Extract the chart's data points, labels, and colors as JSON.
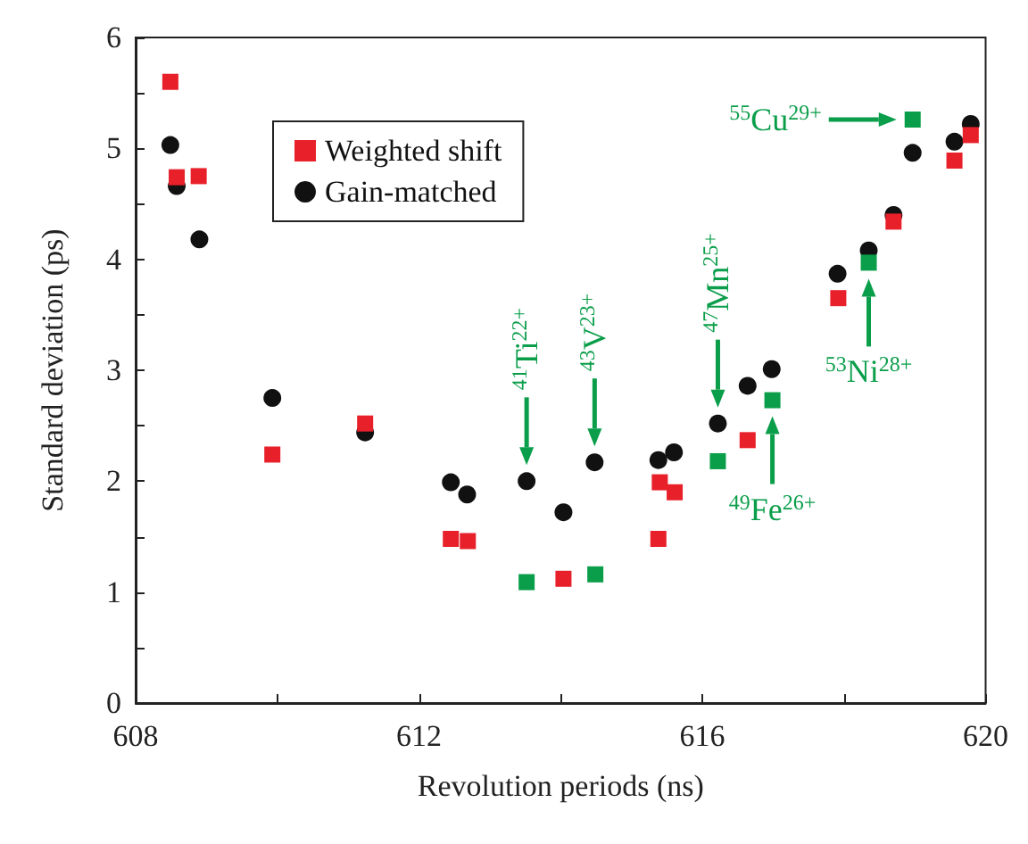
{
  "chart_data": {
    "type": "scatter",
    "xlabel": "Revolution periods (ns)",
    "ylabel": "Standard deviation (ps)",
    "xlim": [
      608,
      620
    ],
    "xticks": [
      608,
      {
        "value": 610,
        "label": null
      },
      612,
      {
        "value": 614,
        "label": null
      },
      616,
      {
        "value": 618,
        "label": null
      },
      620
    ],
    "ylim": [
      0,
      6
    ],
    "yticks": [
      0,
      {
        "value": 0.5,
        "label": null
      },
      1,
      {
        "value": 1.5,
        "label": null
      },
      2,
      {
        "value": 2.5,
        "label": null
      },
      3,
      {
        "value": 3.5,
        "label": null
      },
      4,
      {
        "value": 4.5,
        "label": null
      },
      5,
      {
        "value": 5.5,
        "label": null
      },
      6
    ],
    "grid": false,
    "legend": "top left",
    "series": [
      {
        "name": "Weighted shift",
        "color": "#e8202a",
        "marker": "square",
        "x": [
          608.49,
          608.58,
          608.89,
          609.93,
          611.24,
          612.45,
          612.69,
          613.52,
          614.04,
          614.49,
          615.38,
          615.4,
          615.61,
          616.22,
          616.64,
          616.99,
          617.92,
          618.35,
          618.7,
          618.97,
          619.56,
          619.79
        ],
        "values": [
          5.6,
          4.74,
          4.75,
          2.24,
          2.52,
          1.48,
          1.46,
          1.09,
          1.12,
          1.16,
          1.48,
          1.99,
          1.9,
          2.18,
          2.37,
          2.73,
          3.65,
          3.97,
          4.34,
          5.26,
          4.89,
          5.12
        ],
        "colors": [
          "#e8202a",
          "#e8202a",
          "#e8202a",
          "#e8202a",
          "#e8202a",
          "#e8202a",
          "#e8202a",
          "#0a9e4a",
          "#e8202a",
          "#0a9e4a",
          "#e8202a",
          "#e8202a",
          "#e8202a",
          "#0a9e4a",
          "#e8202a",
          "#0a9e4a",
          "#e8202a",
          "#0a9e4a",
          "#e8202a",
          "#0a9e4a",
          "#e8202a",
          "#e8202a"
        ]
      },
      {
        "name": "Gain-matched",
        "color": "#111111",
        "marker": "circle",
        "x": [
          608.49,
          608.58,
          608.9,
          609.93,
          611.24,
          612.45,
          612.68,
          613.52,
          614.04,
          614.48,
          615.38,
          615.6,
          616.22,
          616.64,
          616.98,
          617.91,
          618.35,
          618.7,
          618.97,
          619.56,
          619.79
        ],
        "values": [
          5.03,
          4.66,
          4.18,
          2.75,
          2.44,
          1.99,
          1.88,
          2.0,
          1.72,
          2.17,
          2.19,
          2.26,
          2.52,
          2.86,
          3.01,
          3.87,
          4.08,
          4.4,
          4.96,
          5.06,
          5.22
        ]
      }
    ],
    "annotations": [
      {
        "text": "$^{41}$Ti$^{22+}$",
        "x": 613.52,
        "y": 2.0
      },
      {
        "text": "$^{43}$V$^{23+}$",
        "x": 614.48,
        "y": 2.17
      },
      {
        "text": "$^{47}$Mn$^{25+}$",
        "x": 616.22,
        "y": 2.52
      },
      {
        "text": "$^{49}$Fe$^{26+}$",
        "x": 616.99,
        "y": 2.73
      },
      {
        "text": "$^{53}$Ni$^{28+}$",
        "x": 618.35,
        "y": 3.97
      },
      {
        "text": "$^{55}$Cu$^{29+}$",
        "x": 618.97,
        "y": 5.26
      }
    ]
  }
}
